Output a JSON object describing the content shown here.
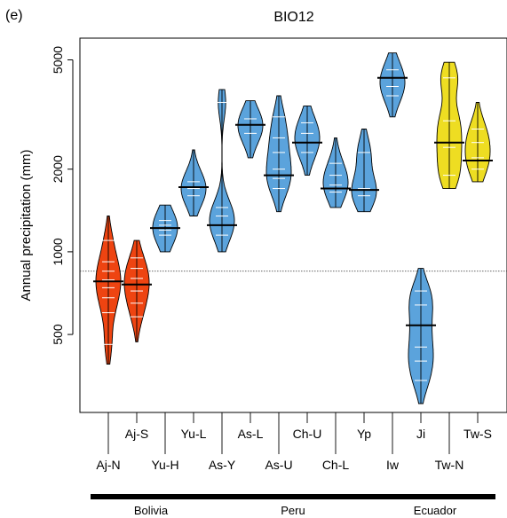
{
  "chart_data": {
    "type": "beanplot",
    "panel_label": "(e)",
    "title": "BIO12",
    "ylabel": "Annual precipitation (mm)",
    "y_scale": "log",
    "ylim": [
      260,
      6000
    ],
    "yticks": [
      500,
      1000,
      2000,
      5000
    ],
    "reference_line": 850,
    "categories": [
      "Aj-N",
      "Aj-S",
      "Yu-H",
      "Yu-L",
      "As-Y",
      "As-L",
      "As-U",
      "Ch-U",
      "Ch-L",
      "Yp",
      "Iw",
      "Ji",
      "Tw-N",
      "Tw-S"
    ],
    "label_row": [
      "lower",
      "upper",
      "lower",
      "upper",
      "lower",
      "upper",
      "lower",
      "upper",
      "lower",
      "upper",
      "lower",
      "upper",
      "lower",
      "upper"
    ],
    "series": [
      {
        "category": "Aj-N",
        "country": "Bolivia",
        "color": "#ee4411",
        "mean": 780,
        "min": 390,
        "max": 1350,
        "obs": [
          460,
          600,
          680,
          740,
          790,
          850,
          920,
          1100
        ]
      },
      {
        "category": "Aj-S",
        "country": "Bolivia",
        "color": "#ee4411",
        "mean": 760,
        "min": 470,
        "max": 1100,
        "obs": [
          580,
          650,
          720,
          760,
          800,
          870,
          950
        ]
      },
      {
        "category": "Yu-H",
        "country": "Bolivia",
        "color": "#5ba3dc",
        "mean": 1220,
        "min": 1000,
        "max": 1480,
        "obs": [
          1150,
          1200,
          1250,
          1300
        ]
      },
      {
        "category": "Yu-L",
        "country": "Bolivia",
        "color": "#5ba3dc",
        "mean": 1720,
        "min": 1350,
        "max": 2350,
        "obs": [
          1600,
          1700,
          1800
        ]
      },
      {
        "category": "As-Y",
        "country": "Peru",
        "color": "#5ba3dc",
        "mean": 1250,
        "min": 1000,
        "max": 3900,
        "obs": [
          1150,
          1250,
          1350,
          1450,
          3500
        ]
      },
      {
        "category": "As-L",
        "country": "Peru",
        "color": "#5ba3dc",
        "mean": 2900,
        "min": 2200,
        "max": 3550,
        "obs": [
          2700,
          2900,
          3050
        ]
      },
      {
        "category": "As-U",
        "country": "Peru",
        "color": "#5ba3dc",
        "mean": 1900,
        "min": 1400,
        "max": 3700,
        "obs": [
          1700,
          1850,
          2000,
          2300,
          2600,
          3100
        ]
      },
      {
        "category": "Ch-U",
        "country": "Peru",
        "color": "#5ba3dc",
        "mean": 2500,
        "min": 1900,
        "max": 3400,
        "obs": [
          2300,
          2500,
          2700,
          2950
        ]
      },
      {
        "category": "Ch-L",
        "country": "Peru",
        "color": "#5ba3dc",
        "mean": 1700,
        "min": 1450,
        "max": 2600,
        "obs": [
          1650,
          1700,
          1750,
          1900,
          2100
        ]
      },
      {
        "category": "Yp",
        "country": "Peru",
        "color": "#5ba3dc",
        "mean": 1680,
        "min": 1400,
        "max": 2800,
        "obs": [
          1600,
          1700,
          2300
        ]
      },
      {
        "category": "Iw",
        "country": "Ecuador",
        "color": "#5ba3dc",
        "mean": 4300,
        "min": 3100,
        "max": 5300,
        "obs": [
          3700,
          4000,
          4300,
          4600
        ]
      },
      {
        "category": "Ji",
        "country": "Ecuador",
        "color": "#5ba3dc",
        "mean": 540,
        "min": 280,
        "max": 870,
        "obs": [
          340,
          400,
          450,
          540,
          640,
          720
        ]
      },
      {
        "category": "Tw-N",
        "country": "Ecuador",
        "color": "#eedd22",
        "mean": 2500,
        "min": 1700,
        "max": 4900,
        "obs": [
          1900,
          2400,
          3000,
          4300
        ]
      },
      {
        "category": "Tw-S",
        "country": "Ecuador",
        "color": "#eedd22",
        "mean": 2150,
        "min": 1800,
        "max": 3500,
        "obs": [
          2000,
          2200,
          2500,
          2800
        ]
      }
    ],
    "groups": [
      {
        "name": "Bolivia",
        "from": "Aj-N",
        "to": "Yu-L"
      },
      {
        "name": "Peru",
        "from": "As-Y",
        "to": "Yp"
      },
      {
        "name": "Ecuador",
        "from": "Iw",
        "to": "Tw-S"
      }
    ],
    "grid": false,
    "legend": "none"
  }
}
